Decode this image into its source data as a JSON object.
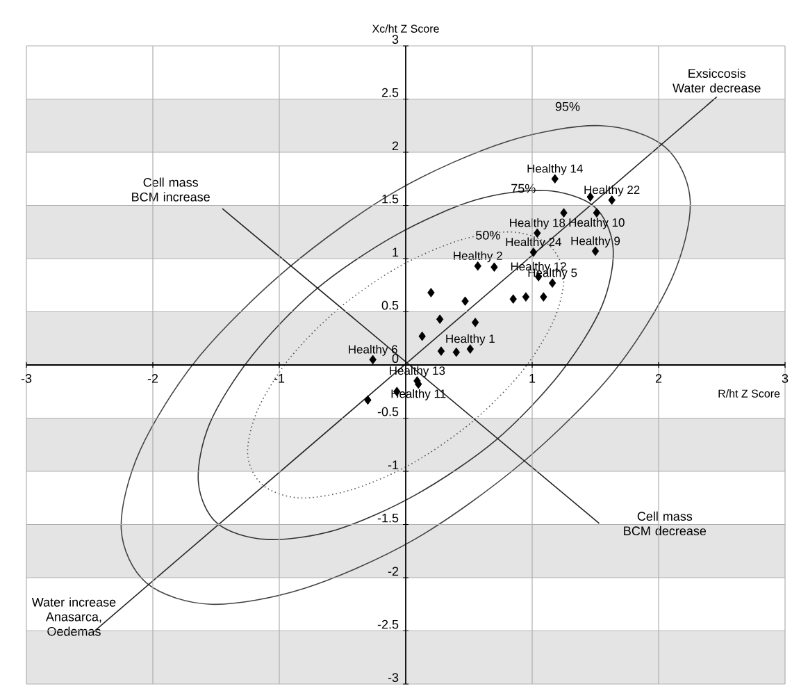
{
  "chart_data": {
    "type": "scatter",
    "xlabel": "R/ht Z Score",
    "ylabel": "Xc/ht Z Score",
    "xlim": [
      -3,
      3
    ],
    "ylim": [
      -3,
      3
    ],
    "xticks": [
      -3,
      -2,
      -1,
      1,
      2,
      3
    ],
    "yticks": [
      -3,
      -2.5,
      -2,
      -1.5,
      -1,
      -0.5,
      0,
      0.5,
      1,
      1.5,
      2,
      2.5,
      3
    ],
    "grid": true,
    "bands": [
      {
        "axis": "y",
        "from": 2,
        "to": 2.5,
        "color": "#e4e4e4"
      },
      {
        "axis": "y",
        "from": 1,
        "to": 1.5,
        "color": "#e4e4e4"
      },
      {
        "axis": "y",
        "from": 0,
        "to": 0.5,
        "color": "#e4e4e4"
      },
      {
        "axis": "y",
        "from": -1,
        "to": -0.5,
        "color": "#e4e4e4"
      },
      {
        "axis": "y",
        "from": -2,
        "to": -1.5,
        "color": "#e4e4e4"
      },
      {
        "axis": "y",
        "from": -3,
        "to": -2.5,
        "color": "#e4e4e4"
      }
    ],
    "series": [
      {
        "type": "line",
        "color": "#222222",
        "marker": "none",
        "line_style": "solid",
        "x": [
          -2.47,
          2.46
        ],
        "values": [
          -2.51,
          2.52
        ]
      },
      {
        "type": "line",
        "color": "#222222",
        "marker": "none",
        "line_style": "solid",
        "x": [
          -1.45,
          1.53
        ],
        "values": [
          1.47,
          -1.49
        ]
      },
      {
        "color": "#000000",
        "marker": "diamond",
        "x": [
          1.18,
          1.46,
          1.63,
          1.25,
          1.51,
          1.04,
          1.01,
          1.5,
          0.57,
          0.7,
          1.05,
          1.16,
          0.85,
          0.95,
          1.09,
          0.2,
          0.47,
          0.27,
          0.55,
          0.13,
          0.28,
          0.4,
          0.51,
          -0.26,
          -0.07,
          -0.3,
          0.09,
          0.1
        ],
        "values": [
          1.75,
          1.58,
          1.55,
          1.43,
          1.43,
          1.24,
          1.06,
          1.07,
          0.93,
          0.92,
          0.83,
          0.77,
          0.62,
          0.64,
          0.64,
          0.68,
          0.6,
          0.43,
          0.4,
          0.27,
          0.13,
          0.12,
          0.15,
          0.05,
          -0.25,
          -0.33,
          -0.15,
          -0.18
        ]
      }
    ],
    "annotations": [
      {
        "text": "Exsiccosis Water decrease",
        "x": 2.46,
        "y": 2.52
      },
      {
        "text": "Cell mass BCM increase",
        "x": -1.45,
        "y": 1.47
      },
      {
        "text": "Cell mass BCM decrease",
        "x": 1.53,
        "y": -1.49
      },
      {
        "text": "Water increase Anasarca, Oedemas",
        "x": -2.47,
        "y": -2.51
      },
      "95%",
      "75%",
      "50%",
      {
        "text": "Healthy 14",
        "x": 1.18,
        "y": 1.75
      },
      {
        "text": "Healthy 22",
        "x": 1.63,
        "y": 1.55
      },
      {
        "text": "Healthy 10",
        "x": 1.51,
        "y": 1.43
      },
      {
        "text": "Healthy 18",
        "x": 1.04,
        "y": 1.24
      },
      {
        "text": "Healthy 24",
        "x": 1.01,
        "y": 1.06
      },
      {
        "text": "Healthy 9",
        "x": 1.5,
        "y": 1.07
      },
      {
        "text": "Healthy 2",
        "x": 0.57,
        "y": 0.93
      },
      {
        "text": "Healthy 12",
        "x": 1.05,
        "y": 0.83
      },
      {
        "text": "Healthy 5",
        "x": 1.16,
        "y": 0.77
      },
      {
        "text": "Healthy 1",
        "x": 0.51,
        "y": 0.15
      },
      {
        "text": "Healthy 6",
        "x": -0.26,
        "y": 0.05
      },
      {
        "text": "Healthy 13",
        "x": 0.09,
        "y": -0.15
      },
      {
        "text": "Healthy 11",
        "x": 0.1,
        "y": -0.18
      }
    ]
  }
}
